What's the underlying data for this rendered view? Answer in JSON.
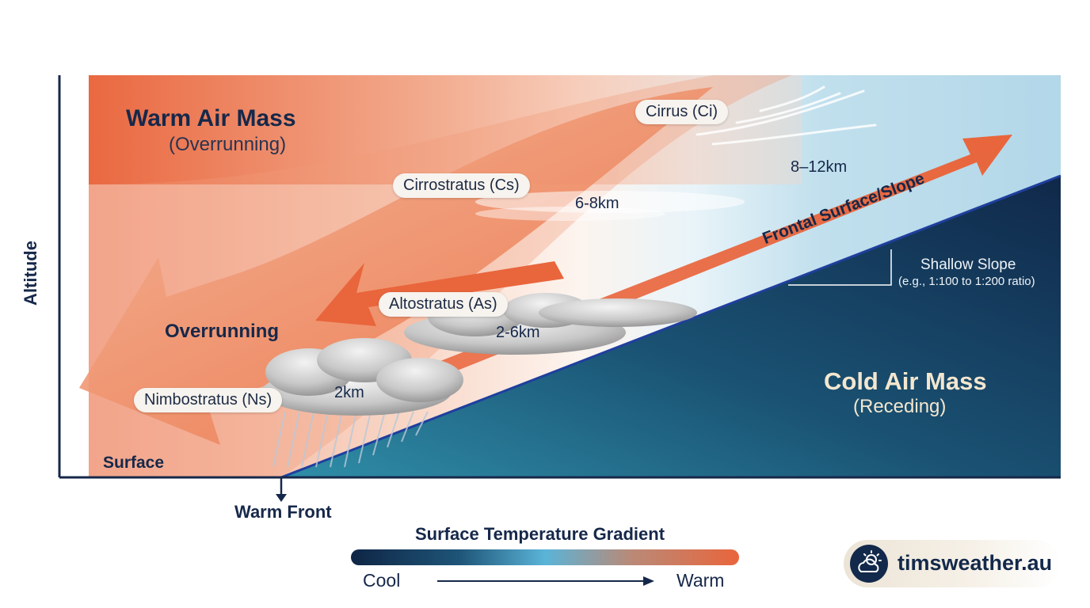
{
  "axis": {
    "y_label": "Altitude",
    "surface_label": "Surface"
  },
  "air_masses": {
    "warm_title": "Warm Air Mass",
    "warm_subtitle": "(Overrunning)",
    "cold_title": "Cold Air Mass",
    "cold_subtitle": "(Receding)"
  },
  "overrunning_label": "Overrunning",
  "frontal_surface_label": "Frontal Surface/Slope",
  "slope_note": {
    "title": "Shallow Slope",
    "detail": "(e.g., 1:100 to 1:200 ratio)"
  },
  "clouds": [
    {
      "name": "Cirrus (Ci)",
      "altitude": "8–12km"
    },
    {
      "name": "Cirrostratus (Cs)",
      "altitude": "6-8km"
    },
    {
      "name": "Altostratus (As)",
      "altitude": "2-6km"
    },
    {
      "name": "Nimbostratus (Ns)",
      "altitude": "2km"
    }
  ],
  "front_marker": "Warm Front",
  "legend": {
    "title": "Surface Temperature Gradient",
    "cool": "Cool",
    "warm": "Warm"
  },
  "brand": {
    "text": "timsweather.au",
    "icon": "sun-cloud-icon"
  },
  "colors": {
    "warm": "#e9653c",
    "cold": "#0f2545",
    "mid": "#5ab4d8",
    "front_line": "#1f3f9e"
  }
}
